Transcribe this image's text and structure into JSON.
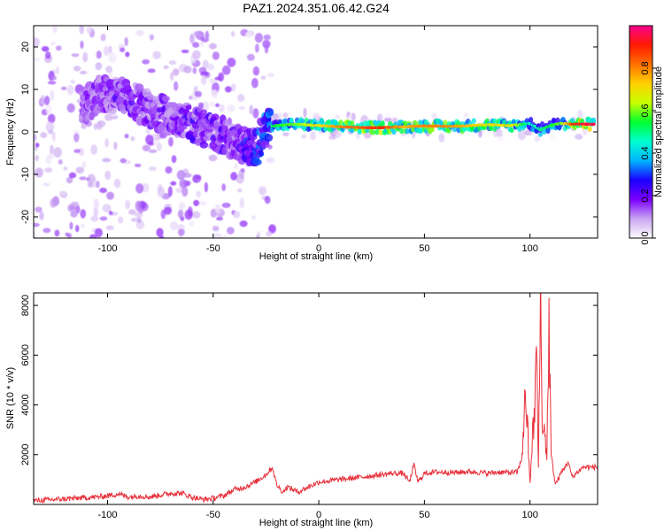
{
  "title": "PAZ1.2024.351.06.42.G24",
  "chart_data": [
    {
      "type": "heatmap",
      "xlabel": "Height of straight line (km)",
      "ylabel": "Frequency (Hz)",
      "xlim": [
        -135,
        132
      ],
      "ylim": [
        -25,
        25
      ],
      "xticks": [
        -100,
        -50,
        0,
        50,
        100
      ],
      "yticks": [
        -20,
        -10,
        0,
        10,
        20
      ],
      "colorbar": {
        "label": "Normalized spectral amplitude",
        "range": [
          0,
          1
        ],
        "ticks": [
          "0.0",
          "0.2",
          "0.4",
          "0.6",
          "0.8"
        ],
        "colormap": [
          "#ffffff",
          "#c9a5f0",
          "#7b00ff",
          "#1a00ff",
          "#00b4ff",
          "#00ffd0",
          "#00ff30",
          "#c8ff00",
          "#ffd000",
          "#ff7000",
          "#ff1a00",
          "#ff0090"
        ]
      },
      "ridge": {
        "x": [
          -112,
          -100,
          -90,
          -80,
          -70,
          -60,
          -50,
          -40,
          -30,
          -25,
          -20,
          -10,
          0,
          10,
          20,
          30,
          40,
          50,
          60,
          70,
          80,
          90,
          95,
          100,
          105,
          110,
          115,
          120,
          125,
          130
        ],
        "y": [
          6,
          9,
          8,
          5,
          4,
          2,
          0,
          -2,
          -4,
          1,
          1.5,
          1.8,
          1.5,
          1.2,
          1.0,
          1.0,
          1.2,
          1.4,
          1.3,
          1.4,
          1.7,
          1.5,
          1.7,
          2.0,
          0.5,
          1.5,
          2.0,
          1.8,
          1.8,
          1.8
        ]
      },
      "ridge_amplitude": [
        0.25,
        0.3,
        0.3,
        0.3,
        0.3,
        0.35,
        0.35,
        0.3,
        0.45,
        0.5,
        0.55,
        0.6,
        0.7,
        0.8,
        0.85,
        0.9,
        0.75,
        0.8,
        0.8,
        0.75,
        0.7,
        0.7,
        0.6,
        0.45,
        0.5,
        0.55,
        0.6,
        0.9,
        0.95,
        0.95
      ]
    },
    {
      "type": "line",
      "xlabel": "Height of straight line (km)",
      "ylabel": "SNR (10 * v/v)",
      "xlim": [
        -135,
        132
      ],
      "ylim": [
        0,
        8500
      ],
      "xticks": [
        -100,
        -50,
        0,
        50,
        100
      ],
      "yticks": [
        2000,
        4000,
        6000,
        8000
      ],
      "color": "#e8303a",
      "series": [
        {
          "x": [
            -135,
            -125,
            -115,
            -105,
            -100,
            -95,
            -90,
            -85,
            -80,
            -75,
            -70,
            -65,
            -60,
            -55,
            -50,
            -45,
            -40,
            -35,
            -30,
            -25,
            -22,
            -20,
            -17,
            -15,
            -12,
            -10,
            -5,
            0,
            5,
            10,
            15,
            20,
            25,
            30,
            35,
            40,
            43,
            45,
            47,
            50,
            55,
            60,
            65,
            70,
            75,
            80,
            85,
            90,
            94,
            96,
            98,
            100,
            101,
            102,
            103,
            104,
            105,
            106,
            107,
            108,
            109,
            110,
            112,
            115,
            118,
            120,
            125,
            132
          ],
          "y": [
            150,
            200,
            250,
            300,
            350,
            420,
            300,
            350,
            300,
            380,
            450,
            450,
            300,
            200,
            250,
            350,
            600,
            700,
            900,
            1200,
            1500,
            800,
            500,
            700,
            600,
            500,
            700,
            900,
            950,
            1000,
            1050,
            1100,
            1150,
            1200,
            1250,
            1250,
            900,
            1600,
            900,
            1250,
            1300,
            1300,
            1280,
            1320,
            1300,
            1250,
            1300,
            1280,
            1300,
            1800,
            4500,
            800,
            2500,
            3300,
            6400,
            1500,
            8500,
            2500,
            3200,
            1800,
            7300,
            2000,
            800,
            1300,
            1700,
            1100,
            1500,
            1500
          ]
        }
      ]
    }
  ]
}
